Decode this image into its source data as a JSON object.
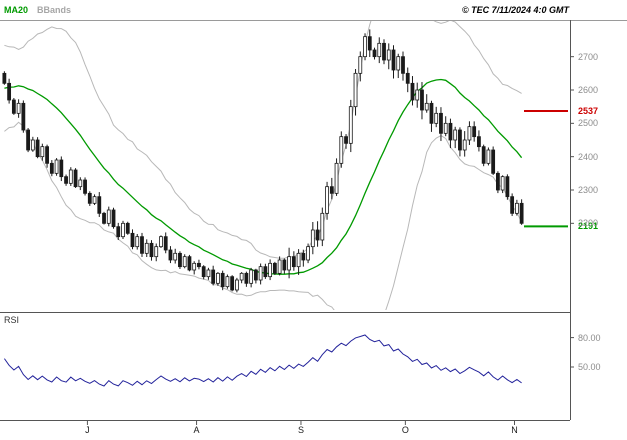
{
  "header": {
    "legend": [
      {
        "label": "MA20",
        "color": "#009a00"
      },
      {
        "label": "BBands",
        "color": "#a6a6a6"
      }
    ],
    "copyright": "© TEC 7/11/2024 4:0 GMT"
  },
  "panes": {
    "rsi_label": "RSI"
  },
  "chart_data": {
    "type": "candlestick",
    "title": "",
    "legend_position": "top-left",
    "grid": false,
    "price_axis": {
      "ticks": [
        2700,
        2600,
        2500,
        2400,
        2300,
        2200
      ],
      "ylim": [
        1940,
        2810
      ]
    },
    "x_axis": {
      "ticks": [
        {
          "label": "J",
          "index": 18
        },
        {
          "label": "A",
          "index": 41
        },
        {
          "label": "S",
          "index": 63
        },
        {
          "label": "O",
          "index": 85
        },
        {
          "label": "N",
          "index": 108
        }
      ]
    },
    "levels": [
      {
        "value": 2537,
        "color": "#cc0000"
      },
      {
        "value": 2191,
        "color": "#009a00"
      }
    ],
    "rsi_axis": {
      "ticks": [
        {
          "label": "80.00",
          "value": 80
        },
        {
          "label": "50.00",
          "value": 50
        }
      ],
      "ylim": [
        0,
        100
      ]
    },
    "indicators": {
      "ma_period": 20,
      "bb_mult": 2,
      "rsi_period": 14
    },
    "wicks": {
      "normal": 14,
      "volatile": 28,
      "volatile_range": [
        60,
        100
      ]
    },
    "pre_closes": [
      2480,
      2500,
      2520,
      2490,
      2530,
      2560,
      2540,
      2580,
      2600,
      2570,
      2610,
      2640,
      2620,
      2660,
      2680,
      2650,
      2690,
      2710,
      2680,
      2650
    ],
    "closes": [
      2620,
      2570,
      2530,
      2560,
      2480,
      2420,
      2450,
      2400,
      2430,
      2380,
      2350,
      2390,
      2340,
      2320,
      2360,
      2310,
      2330,
      2290,
      2260,
      2280,
      2230,
      2200,
      2240,
      2190,
      2160,
      2200,
      2170,
      2130,
      2160,
      2110,
      2140,
      2100,
      2130,
      2160,
      2120,
      2090,
      2110,
      2070,
      2100,
      2060,
      2080,
      2070,
      2040,
      2060,
      2020,
      2050,
      2010,
      2040,
      2000,
      2030,
      2050,
      2020,
      2060,
      2030,
      2070,
      2040,
      2080,
      2050,
      2090,
      2060,
      2100,
      2070,
      2110,
      2090,
      2130,
      2180,
      2150,
      2230,
      2310,
      2290,
      2380,
      2460,
      2440,
      2550,
      2650,
      2700,
      2760,
      2720,
      2700,
      2740,
      2690,
      2720,
      2660,
      2700,
      2650,
      2620,
      2570,
      2600,
      2540,
      2560,
      2500,
      2530,
      2470,
      2500,
      2450,
      2480,
      2420,
      2450,
      2490,
      2460,
      2430,
      2380,
      2420,
      2350,
      2300,
      2340,
      2280,
      2230,
      2260,
      2200
    ],
    "colors": {
      "candle": "#1a1a1a",
      "ma": "#009a00",
      "bands": "#b8b8b8",
      "rsi": "#23239b",
      "axis_text": "#8c8c8c",
      "month_text": "#1a1a1a",
      "frame": "#555555",
      "header_rule": "#9a9a9a"
    }
  }
}
